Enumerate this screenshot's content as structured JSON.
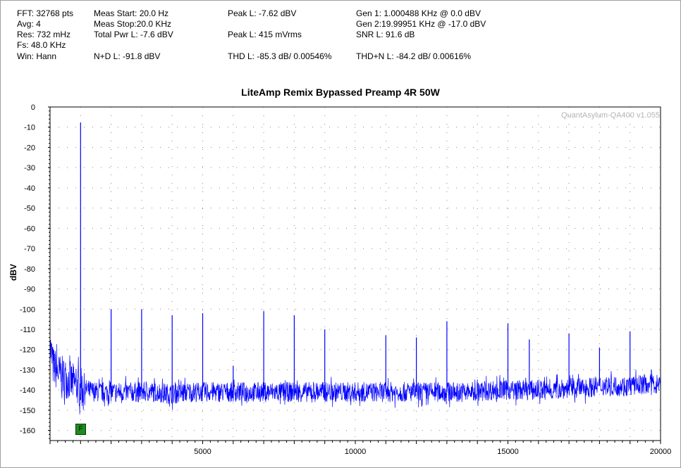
{
  "readouts": {
    "fft": "FFT: 32768 pts",
    "avg": "Avg: 4",
    "res": "Res: 732 mHz",
    "fs": "Fs: 48.0 KHz",
    "win": "Win: Hann",
    "meas_start": "Meas Start: 20.0 Hz",
    "meas_stop": "Meas Stop:20.0 KHz",
    "total_pwr": "Total Pwr L: -7.6 dBV",
    "nd": "N+D L: -91.8 dBV",
    "peak_dbv": "Peak L: -7.62 dBV",
    "peak_mv": "Peak L: 415 mVrms",
    "thd": "THD L: -85.3 dB/ 0.00546%",
    "gen1": "Gen 1: 1.000488 KHz @ 0.0  dBV",
    "gen2": "Gen 2:19.99951 KHz @ -17.0  dBV",
    "snr": "SNR L: 91.6 dB",
    "thdn": "THD+N L: -84.2 dB/ 0.00616%"
  },
  "watermark": "QuantAsylum-QA400 v1.055",
  "marker_label": "F",
  "colors": {
    "trace": "#0000ff",
    "grid": "#888888",
    "marker": "#1e8c1e"
  },
  "chart_data": {
    "type": "line",
    "title": "LiteAmp Remix Bypassed Preamp 4R 50W",
    "xlabel": "",
    "ylabel": "dBV",
    "xlim": [
      0,
      20000
    ],
    "ylim": [
      -165,
      0
    ],
    "x_ticks": [
      5000,
      10000,
      15000,
      20000
    ],
    "y_ticks": [
      0,
      -10,
      -20,
      -30,
      -40,
      -50,
      -60,
      -70,
      -80,
      -90,
      -100,
      -110,
      -120,
      -130,
      -140,
      -150,
      -160
    ],
    "grid": true,
    "noise_floor_dbv": -141,
    "series": [
      {
        "x": [
          0,
          100,
          300,
          600,
          1000,
          1500,
          2000,
          2500,
          3000,
          3500,
          4000,
          4500,
          5000,
          5500,
          6000,
          6500,
          7000,
          7500,
          8000,
          8500,
          9000,
          9500,
          10000,
          10500,
          11000,
          11500,
          12000,
          12500,
          13000,
          13500,
          14000,
          14500,
          15000,
          15500,
          16000,
          16500,
          17000,
          17500,
          18000,
          18500,
          19000,
          19500,
          20000
        ],
        "y": [
          -118,
          -128,
          -132,
          -135,
          -139,
          -141,
          -141,
          -141,
          -141,
          -141,
          -142,
          -141,
          -141,
          -141,
          -141,
          -141,
          -141,
          -141,
          -141,
          -141,
          -141,
          -141,
          -141,
          -141,
          -141,
          -141,
          -141,
          -141,
          -141,
          -141,
          -141,
          -140,
          -140,
          -140,
          -140,
          -140,
          -139,
          -139,
          -138,
          -138,
          -138,
          -137,
          -137
        ]
      }
    ],
    "peaks": [
      {
        "x": 1000,
        "y": -7.6
      },
      {
        "x": 2000,
        "y": -100
      },
      {
        "x": 3000,
        "y": -100
      },
      {
        "x": 4000,
        "y": -103
      },
      {
        "x": 5000,
        "y": -102
      },
      {
        "x": 6000,
        "y": -128
      },
      {
        "x": 7000,
        "y": -101
      },
      {
        "x": 8000,
        "y": -103
      },
      {
        "x": 9000,
        "y": -110
      },
      {
        "x": 11000,
        "y": -113
      },
      {
        "x": 12000,
        "y": -114
      },
      {
        "x": 13000,
        "y": -106
      },
      {
        "x": 15000,
        "y": -107
      },
      {
        "x": 15700,
        "y": -115
      },
      {
        "x": 17000,
        "y": -112
      },
      {
        "x": 18000,
        "y": -119
      },
      {
        "x": 19000,
        "y": -111
      },
      {
        "x": 19700,
        "y": -130
      }
    ]
  }
}
